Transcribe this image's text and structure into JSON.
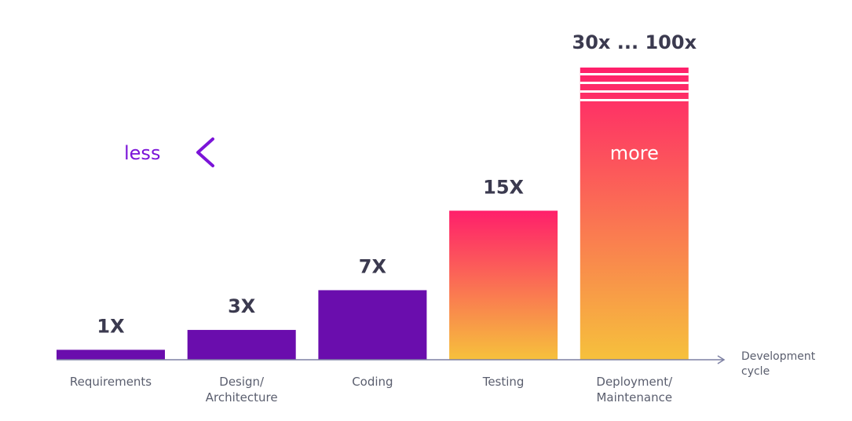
{
  "chart_data": {
    "type": "bar",
    "categories": [
      [
        "Requirements"
      ],
      [
        "Design/",
        "Architecture"
      ],
      [
        "Coding"
      ],
      [
        "Testing"
      ],
      [
        "Deployment/",
        "Maintenance"
      ]
    ],
    "values": [
      1,
      3,
      7,
      15,
      30
    ],
    "value_labels": [
      "1X",
      "3X",
      "7X",
      "15X",
      "30x ... 100x"
    ],
    "x_axis_label": [
      "Development",
      "cycle"
    ],
    "arrow_left_label": "less",
    "arrow_right_label": "more",
    "colors": {
      "purple": "#6a0dad",
      "arrow_left": "#7b14d8",
      "arrow_right": "#ff1f6b",
      "gradient_top": "#ff1f6b",
      "gradient_bottom": "#f6c13c",
      "axis": "#7d80a3",
      "value_text": "#3b3a4f",
      "category_text": "#5a5e6e"
    },
    "bar_styles": [
      "purple",
      "purple",
      "purple",
      "gradient",
      "gradient"
    ]
  }
}
